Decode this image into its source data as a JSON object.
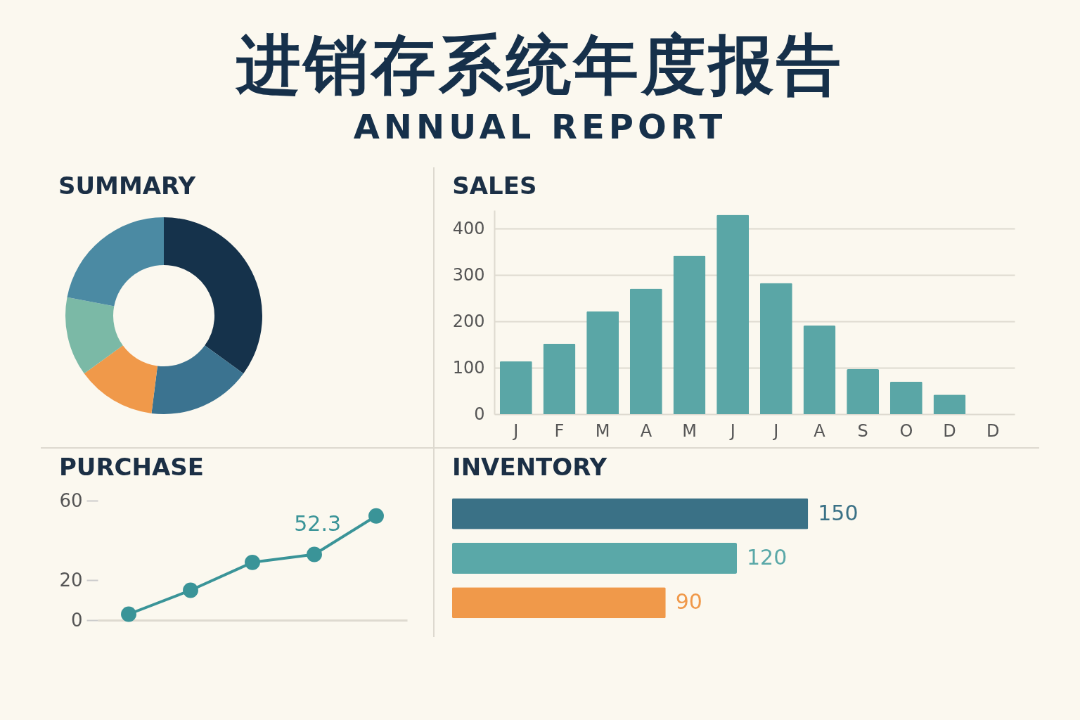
{
  "chart_data": [
    {
      "type": "other",
      "title": "进销存系统年度报告",
      "subtitle": "ANNUAL REPORT"
    },
    {
      "type": "donut",
      "title": "SUMMARY",
      "categories": [
        null,
        null,
        null,
        null,
        null
      ],
      "values": [
        35,
        17,
        13,
        13,
        22
      ],
      "colors": [
        "#15324b",
        "#3b7390",
        "#f0994a",
        "#7bb9a6",
        "#4b8aa3"
      ]
    },
    {
      "type": "bar",
      "title": "SALES",
      "categories": [
        "J",
        "F",
        "M",
        "A",
        "M",
        "J",
        "J",
        "A",
        "S",
        "O",
        "D",
        "D"
      ],
      "values": [
        114,
        152,
        222,
        271,
        342,
        430,
        283,
        191,
        97,
        70,
        42,
        null
      ],
      "color": "#5aa6a6",
      "ylim": [
        0,
        440
      ],
      "yticks": [
        0,
        100,
        200,
        300,
        400
      ],
      "grid": "y"
    },
    {
      "type": "line",
      "title": "PURCHASE",
      "categories": [
        null,
        null,
        null,
        null,
        null
      ],
      "series": [
        {
          "color": "#3a9498",
          "values": [
            3,
            15,
            29,
            33,
            52.3
          ],
          "value_labels": [
            null,
            null,
            null,
            null,
            "52.3"
          ]
        }
      ],
      "ylim": [
        0,
        60
      ],
      "yticks": [
        0,
        20,
        60
      ],
      "marker": "circle",
      "tick_labels": "y"
    },
    {
      "type": "bar",
      "orientation": "horizontal",
      "title": "INVENTORY",
      "categories": [
        null,
        null,
        null
      ],
      "values": [
        150,
        120,
        90
      ],
      "colors": [
        "#3a7186",
        "#5aa8a8",
        "#f0994a"
      ],
      "data_labels": true,
      "tick_labels": false
    }
  ]
}
